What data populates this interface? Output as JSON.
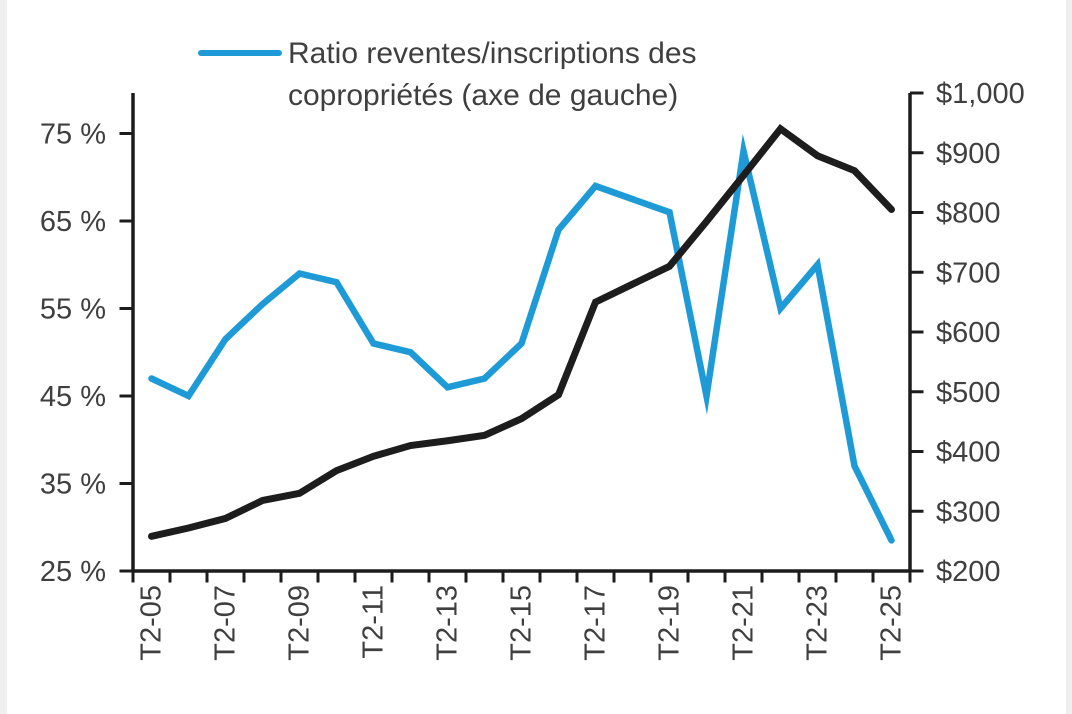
{
  "legend": {
    "series_label": "Ratio reventes/inscriptions des copropriétés (axe de gauche)",
    "series_label_lines": [
      "Ratio reventes/inscriptions des",
      "copropriétés (axe de gauche)"
    ],
    "swatch_color": "#1E9BD7"
  },
  "chart_data": {
    "type": "line",
    "title": "",
    "grid": false,
    "legend_position": "top",
    "categories": [
      "T2-05",
      "T2-06",
      "T2-07",
      "T2-08",
      "T2-09",
      "T2-10",
      "T2-11",
      "T2-12",
      "T2-13",
      "T2-14",
      "T2-15",
      "T2-16",
      "T2-17",
      "T2-18",
      "T2-19",
      "T2-20",
      "T2-21",
      "T2-22",
      "T2-23",
      "T2-24",
      "T2-25"
    ],
    "x_tick_labels_shown": [
      "T2-05",
      "T2-07",
      "T2-09",
      "T2-11",
      "T2-13",
      "T2-15",
      "T2-17",
      "T2-19",
      "T2-21",
      "T2-23",
      "T2-25"
    ],
    "series": [
      {
        "name": "Ratio reventes/inscriptions des copropriétés (axe de gauche)",
        "axis": "left",
        "unit": "%",
        "color": "#1E9BD7",
        "values": [
          47,
          45,
          51.5,
          55.5,
          59,
          58,
          51,
          50,
          46,
          47,
          51,
          64,
          69,
          67.5,
          66,
          45,
          73,
          55,
          60,
          37,
          28.5
        ]
      },
      {
        "axis": "right",
        "unit": "$",
        "color": "#1D1D1D",
        "values": [
          258,
          272,
          288,
          318,
          330,
          368,
          392,
          410,
          418,
          427,
          455,
          495,
          650,
          680,
          710,
          785,
          862,
          940,
          895,
          870,
          805
        ]
      }
    ],
    "left_axis": {
      "min": 25,
      "max": 75,
      "unit": "%",
      "tick_values": [
        75,
        65,
        55,
        45,
        35,
        25
      ],
      "tick_labels": [
        "75 %",
        "65 %",
        "55 %",
        "45 %",
        "35 %",
        "25 %"
      ]
    },
    "right_axis": {
      "min": 200,
      "max": 1000,
      "unit": "$",
      "tick_values": [
        1000,
        900,
        800,
        700,
        600,
        500,
        400,
        300,
        200
      ],
      "tick_labels": [
        "$1,000",
        "$900",
        "$800",
        "$700",
        "$600",
        "$500",
        "$400",
        "$300",
        "$200"
      ]
    }
  }
}
